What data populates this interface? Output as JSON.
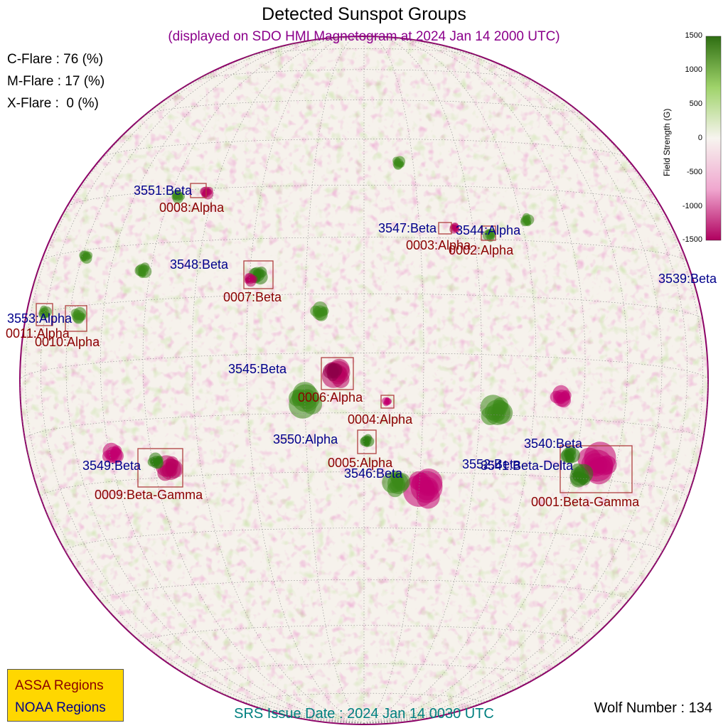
{
  "title": "Detected Sunspot Groups",
  "subtitle": "(displayed on SDO HMI Magnetogram at 2024 Jan 14 2000 UTC)",
  "flares": [
    {
      "label": "C-Flare : 76 (%)"
    },
    {
      "label": "M-Flare : 17 (%)"
    },
    {
      "label": "X-Flare :  0 (%)"
    }
  ],
  "colorbar": {
    "title": "Field Strength (G)",
    "ticks": [
      "1500",
      "1000",
      "500",
      "0",
      "-500",
      "-1000",
      "-1500"
    ],
    "colors": {
      "positive": "#2e7d10",
      "negative": "#c2006f",
      "zero": "#f7f4ef"
    }
  },
  "noaa_regions": [
    "3551:Beta",
    "3547:Beta",
    "3544:Alpha",
    "3548:Beta",
    "3539:Beta",
    "3553:Alpha",
    "3545:Beta",
    "3550:Alpha",
    "3549:Beta",
    "3540:Beta",
    "3552:Beta",
    "3541:Beta-Delta",
    "3546:Beta"
  ],
  "assa_regions": [
    "0008:Alpha",
    "0003:Alpha",
    "0002:Alpha",
    "0007:Beta",
    "0011:Alpha",
    "0010:Alpha",
    "0006:Alpha",
    "0004:Alpha",
    "0005:Alpha",
    "0009:Beta-Gamma",
    "0001:Beta-Gamma"
  ],
  "legend": {
    "assa": "ASSA Regions",
    "noaa": "NOAA Regions",
    "background": "#ffd700"
  },
  "srs_issue": "SRS Issue Date : 2024 Jan 14 0030 UTC",
  "wolf_number": "Wolf Number : 134"
}
